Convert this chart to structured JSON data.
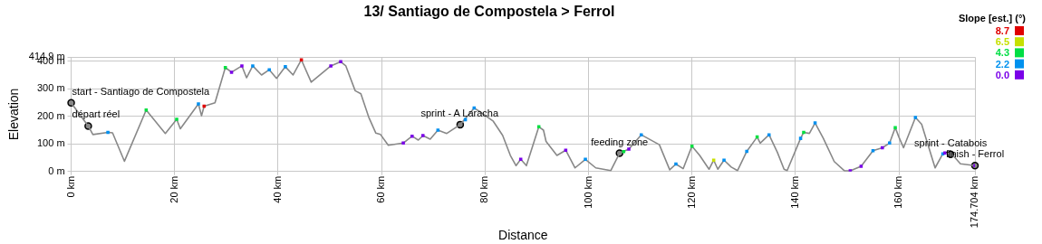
{
  "chart_data": {
    "type": "line",
    "title": "13/ Santiago de Compostela > Ferrol",
    "xlabel": "Distance",
    "ylabel": "Elevation",
    "clabel": "Slope [est.] (°)",
    "clim": [
      0,
      8.7
    ],
    "cticks": [
      {
        "value": 0,
        "label": "0.0"
      },
      {
        "value": 2.2,
        "label": "2.2"
      },
      {
        "value": 4.3,
        "label": "4.3"
      },
      {
        "value": 6.5,
        "label": "6.5"
      },
      {
        "value": 8.7,
        "label": "8.7"
      }
    ],
    "xlim": [
      0,
      174.704
    ],
    "xticks": [
      {
        "value": 0,
        "label": "0 km"
      },
      {
        "value": 20,
        "label": "20 km"
      },
      {
        "value": 40,
        "label": "40 km"
      },
      {
        "value": 60,
        "label": "60 km"
      },
      {
        "value": 80,
        "label": "80 km"
      },
      {
        "value": 100,
        "label": "100 km"
      },
      {
        "value": 120,
        "label": "120 km"
      },
      {
        "value": 140,
        "label": "140 km"
      },
      {
        "value": 160,
        "label": "160 km"
      },
      {
        "value": 174.704,
        "label": "174.704 km"
      }
    ],
    "ylim": [
      0,
      414.9
    ],
    "yticks": [
      {
        "value": 0,
        "label": "0 m"
      },
      {
        "value": 100,
        "label": "100 m"
      },
      {
        "value": 200,
        "label": "200 m"
      },
      {
        "value": 300,
        "label": "300 m"
      },
      {
        "value": 400,
        "label": "400 m"
      },
      {
        "value": 414.9,
        "label": "414.9 m"
      }
    ],
    "grid": true,
    "legend": false,
    "line_style": "solid",
    "series": [
      {
        "type": "line",
        "color": "#888888",
        "marker": "none",
        "x": [
          0,
          3.3,
          4.2,
          7.1,
          8.0,
          10.3,
          14.5,
          18.2,
          20.4,
          21.1,
          24.6,
          25.2,
          25.7,
          27.8,
          29.8,
          31.0,
          33.0,
          33.9,
          35.1,
          36.8,
          38.3,
          39.7,
          41.4,
          42.9,
          44.5,
          46.4,
          50.2,
          52.1,
          53.1,
          54.9,
          56.0,
          57.5,
          58.9,
          59.8,
          61.3,
          64.2,
          65.9,
          67.1,
          68.0,
          69.4,
          70.9,
          72.6,
          75.2,
          77.9,
          79.0,
          81.6,
          83.4,
          84.9,
          86.0,
          86.9,
          88.0,
          90.4,
          91.3,
          91.8,
          93.9,
          95.6,
          97.4,
          99.4,
          101.4,
          104.3,
          106.0,
          107.8,
          110.2,
          113.7,
          115.7,
          116.9,
          118.3,
          120.0,
          121.5,
          123.3,
          124.2,
          125.0,
          126.2,
          127.6,
          128.8,
          130.6,
          132.6,
          133.2,
          134.9,
          136.5,
          137.8,
          138.4,
          141.0,
          141.6,
          142.7,
          143.8,
          145.4,
          147.5,
          149.5,
          150.6,
          152.7,
          155.0,
          156.8,
          158.2,
          159.3,
          160.0,
          160.9,
          163.2,
          164.4,
          165.8,
          167.0,
          168.5,
          169.3,
          170.7,
          171.9,
          174.704
        ],
        "values": [
          249,
          165,
          134,
          142,
          140,
          37,
          223,
          138,
          189,
          155,
          245,
          202,
          237,
          249,
          377,
          360,
          383,
          340,
          383,
          350,
          369,
          338,
          380,
          350,
          405,
          324,
          383,
          398,
          383,
          293,
          282,
          198,
          139,
          134,
          95,
          103,
          128,
          114,
          130,
          117,
          150,
          138,
          170,
          230,
          217,
          182,
          131,
          58,
          21,
          44,
          21,
          162,
          150,
          109,
          58,
          77,
          13,
          44,
          13,
          3,
          66,
          81,
          133,
          97,
          6,
          27,
          10,
          92,
          58,
          8,
          41,
          8,
          41,
          16,
          3,
          73,
          125,
          103,
          133,
          70,
          8,
          3,
          120,
          142,
          138,
          176,
          120,
          36,
          2,
          2,
          19,
          75,
          86,
          103,
          159,
          125,
          86,
          196,
          171,
          86,
          13,
          64,
          70,
          53,
          28,
          21
        ]
      },
      {
        "type": "scatter",
        "marker": "square",
        "x": [
          7.1,
          14.5,
          20.4,
          24.6,
          25.7,
          29.8,
          31.0,
          33.0,
          35.1,
          38.3,
          41.4,
          44.5,
          50.2,
          52.1,
          64.2,
          65.9,
          68.0,
          70.9,
          76.2,
          77.9,
          86.9,
          90.4,
          95.6,
          99.4,
          106.8,
          107.8,
          110.2,
          116.9,
          120.0,
          124.2,
          126.2,
          130.6,
          132.6,
          134.9,
          141.0,
          141.6,
          143.8,
          150.6,
          152.7,
          155.0,
          156.8,
          158.2,
          159.3,
          163.2,
          168.5,
          168.9,
          174.704
        ],
        "values": [
          142,
          223,
          189,
          245,
          237,
          377,
          360,
          383,
          383,
          369,
          380,
          405,
          383,
          398,
          103,
          128,
          130,
          150,
          188,
          230,
          44,
          162,
          77,
          44,
          72,
          81,
          133,
          27,
          92,
          41,
          41,
          73,
          125,
          133,
          120,
          142,
          176,
          2,
          19,
          75,
          86,
          103,
          159,
          196,
          64,
          67,
          21
        ],
        "colors": [
          "#0090f0",
          "#00e040",
          "#00e040",
          "#0090f0",
          "#e00000",
          "#00e040",
          "#7a00e8",
          "#7a00e8",
          "#0090f0",
          "#0090f0",
          "#0090f0",
          "#e00000",
          "#7a00e8",
          "#7a00e8",
          "#7a00e8",
          "#7a00e8",
          "#7a00e8",
          "#0090f0",
          "#0090f0",
          "#0090f0",
          "#7a00e8",
          "#00e040",
          "#7a00e8",
          "#0090f0",
          "#00e040",
          "#7a00e8",
          "#0090f0",
          "#0090f0",
          "#00e040",
          "#c8e000",
          "#0090f0",
          "#0090f0",
          "#00e040",
          "#0090f0",
          "#0090f0",
          "#00e040",
          "#0090f0",
          "#7a00e8",
          "#7a00e8",
          "#0090f0",
          "#7a00e8",
          "#0090f0",
          "#00e040",
          "#0090f0",
          "#0090f0",
          "#7a00e8",
          "#7a00e8"
        ]
      }
    ],
    "annotations": [
      {
        "text": "start - Santiago de Compostela",
        "x": 0,
        "y": 249
      },
      {
        "text": "départ réel",
        "x": 3.3,
        "y": 165
      },
      {
        "text": "sprint - A Laracha",
        "x": 75.2,
        "y": 170
      },
      {
        "text": "feeding zone",
        "x": 106.0,
        "y": 66
      },
      {
        "text": "sprint - Catabois",
        "x": 170.0,
        "y": 62
      },
      {
        "text": "finish - Ferrol",
        "x": 174.704,
        "y": 21
      }
    ]
  }
}
